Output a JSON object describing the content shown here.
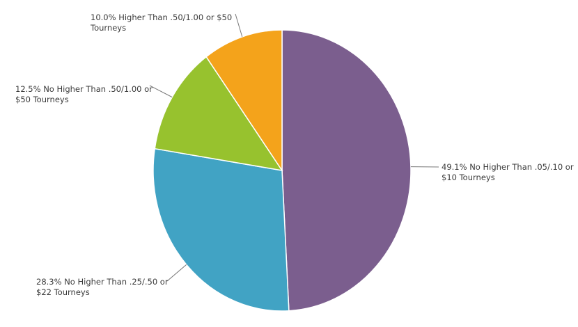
{
  "chart_data": {
    "type": "pie",
    "categories": [
      "No Higher Than .05/.10 or $10 Tourneys",
      "No Higher Than .25/.50 or $22 Tourneys",
      "No Higher Than .50/1.00 or $50 Tourneys",
      "Higher Than .50/1.00 or $50 Tourneys"
    ],
    "values": [
      49.1,
      28.3,
      12.5,
      10.0
    ],
    "value_labels": [
      "49.1%",
      "28.3%",
      "12.5%",
      "10.0%"
    ],
    "colors": [
      "#7b5e8e",
      "#41a3c4",
      "#97c22e",
      "#f4a31b"
    ]
  }
}
